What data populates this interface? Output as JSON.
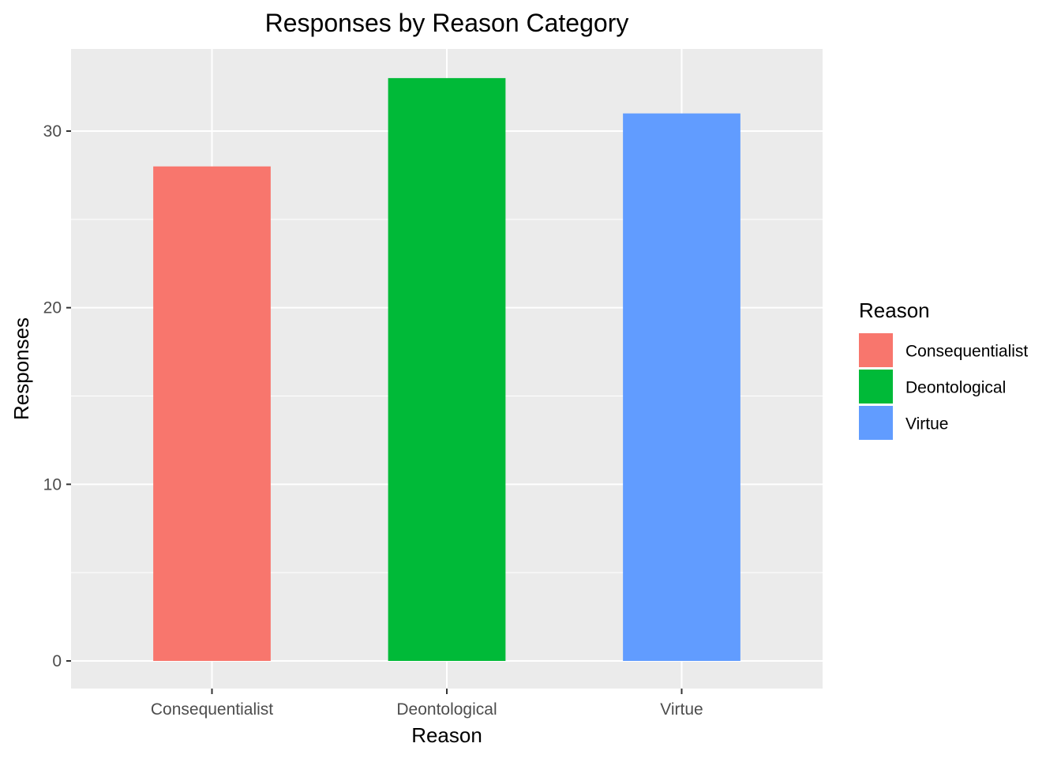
{
  "chart_data": {
    "type": "bar",
    "title": "Responses by Reason Category",
    "xlabel": "Reason",
    "ylabel": "Responses",
    "categories": [
      "Consequentialist",
      "Deontological",
      "Virtue"
    ],
    "values": [
      28,
      33,
      31
    ],
    "ylim": [
      0,
      34.65
    ],
    "yticks": [
      0,
      10,
      20,
      30
    ],
    "ytick_labels": [
      "0",
      "10",
      "20",
      "30"
    ],
    "grid": true,
    "legend": {
      "title": "Reason",
      "position": "right",
      "items": [
        "Consequentialist",
        "Deontological",
        "Virtue"
      ]
    },
    "colors": [
      "#F8766D",
      "#00BA38",
      "#619CFF"
    ],
    "panel_background": "#EBEBEB",
    "grid_color": "#FFFFFF"
  }
}
